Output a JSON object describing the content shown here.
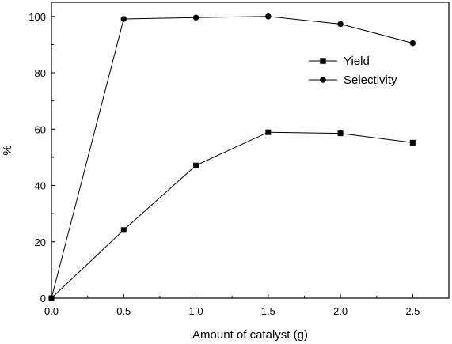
{
  "chart_data": {
    "type": "line",
    "title": "",
    "xlabel": "Amount of catalyst (g)",
    "ylabel": "%",
    "xlim": [
      0,
      2.75
    ],
    "ylim": [
      0,
      105
    ],
    "x_ticks": [
      0.0,
      0.5,
      1.0,
      1.5,
      2.0,
      2.5
    ],
    "x_tick_labels": [
      "0.0",
      "0.5",
      "1.0",
      "1.5",
      "2.0",
      "2.5"
    ],
    "y_ticks": [
      0,
      20,
      40,
      60,
      80,
      100
    ],
    "y_tick_labels": [
      "0",
      "20",
      "40",
      "60",
      "80",
      "100"
    ],
    "grid": false,
    "legend_position": "top-right",
    "x": [
      0.0,
      0.5,
      1.0,
      1.5,
      2.0,
      2.5
    ],
    "series": [
      {
        "name": "Yield",
        "marker": "square",
        "color": "#000000",
        "values": [
          0,
          24.2,
          47.1,
          58.9,
          58.5,
          55.2
        ]
      },
      {
        "name": "Selectivity",
        "marker": "circle",
        "color": "#000000",
        "values": [
          0,
          99.1,
          99.6,
          100.0,
          97.3,
          90.5
        ]
      }
    ]
  }
}
